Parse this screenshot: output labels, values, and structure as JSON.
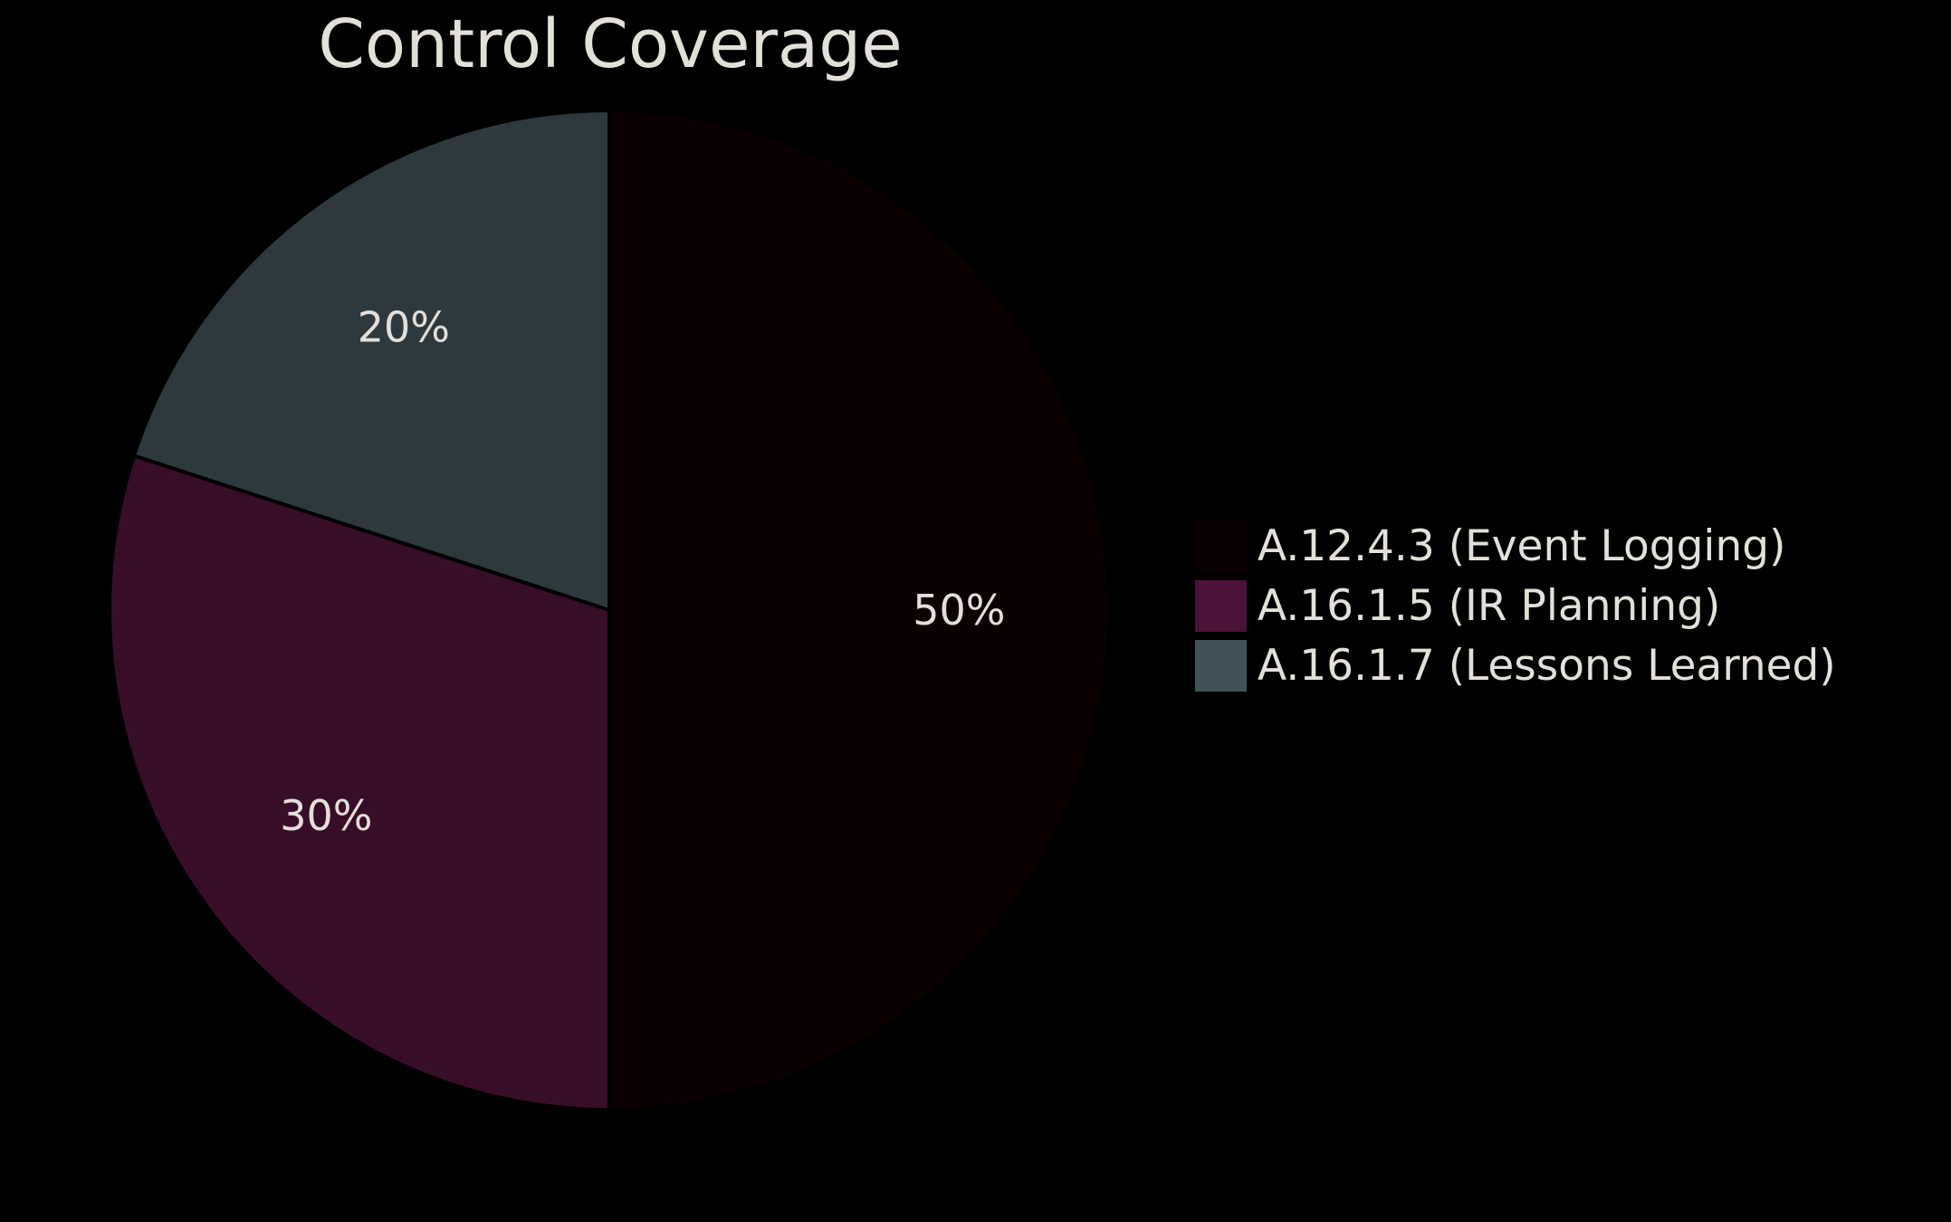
{
  "chart_data": {
    "type": "pie",
    "title": "Control Coverage",
    "categories": [
      "A.12.4.3 (Event Logging)",
      "A.16.1.5 (IR Planning)",
      "A.16.1.7 (Lessons Learned)"
    ],
    "values": [
      50,
      30,
      20
    ],
    "value_labels": [
      "50%",
      "30%",
      "20%"
    ],
    "slice_colors": [
      "#0a0002",
      "#380d28",
      "#2e393d"
    ],
    "legend_colors": [
      "#0a0002",
      "#4d1238",
      "#405258"
    ],
    "start_angle_deg": 90,
    "direction": "clockwise",
    "legend_position": "right",
    "background": "#000000"
  }
}
